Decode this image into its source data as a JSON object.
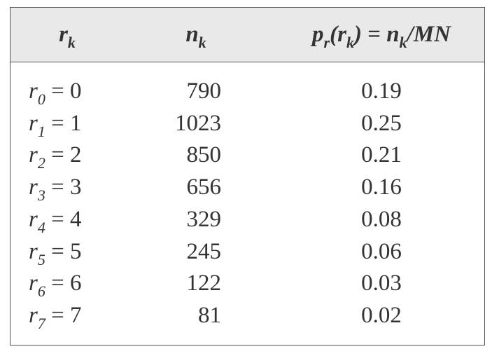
{
  "table": {
    "header": [
      [
        {
          "main": "r",
          "sub": "k",
          "italic": true
        }
      ],
      [
        {
          "main": "n",
          "sub": "k",
          "italic": true
        }
      ],
      [
        {
          "main": "p",
          "sub": "r",
          "italic": true
        },
        {
          "main": "(r",
          "sub": "k",
          "italic": true
        },
        {
          "main": ")",
          "italic": true
        },
        {
          "main": " = "
        },
        {
          "main": "n",
          "sub": "k",
          "italic": true
        },
        {
          "main": "/MN",
          "italic": true
        }
      ]
    ],
    "rows": [
      [
        [
          {
            "main": "r",
            "sub": "0",
            "italic": true
          },
          {
            "main": " = 0"
          }
        ],
        790,
        0.19
      ],
      [
        [
          {
            "main": "r",
            "sub": "1",
            "italic": true
          },
          {
            "main": " = 1"
          }
        ],
        1023,
        0.25
      ],
      [
        [
          {
            "main": "r",
            "sub": "2",
            "italic": true
          },
          {
            "main": " = 2"
          }
        ],
        850,
        0.21
      ],
      [
        [
          {
            "main": "r",
            "sub": "3",
            "italic": true
          },
          {
            "main": " = 3"
          }
        ],
        656,
        0.16
      ],
      [
        [
          {
            "main": "r",
            "sub": "4",
            "italic": true
          },
          {
            "main": " = 4"
          }
        ],
        329,
        0.08
      ],
      [
        [
          {
            "main": "r",
            "sub": "5",
            "italic": true
          },
          {
            "main": " = 5"
          }
        ],
        245,
        0.06
      ],
      [
        [
          {
            "main": "r",
            "sub": "6",
            "italic": true
          },
          {
            "main": " = 6"
          }
        ],
        122,
        0.03
      ],
      [
        [
          {
            "main": "r",
            "sub": "7",
            "italic": true
          },
          {
            "main": " = 7"
          }
        ],
        81,
        0.02
      ]
    ]
  }
}
